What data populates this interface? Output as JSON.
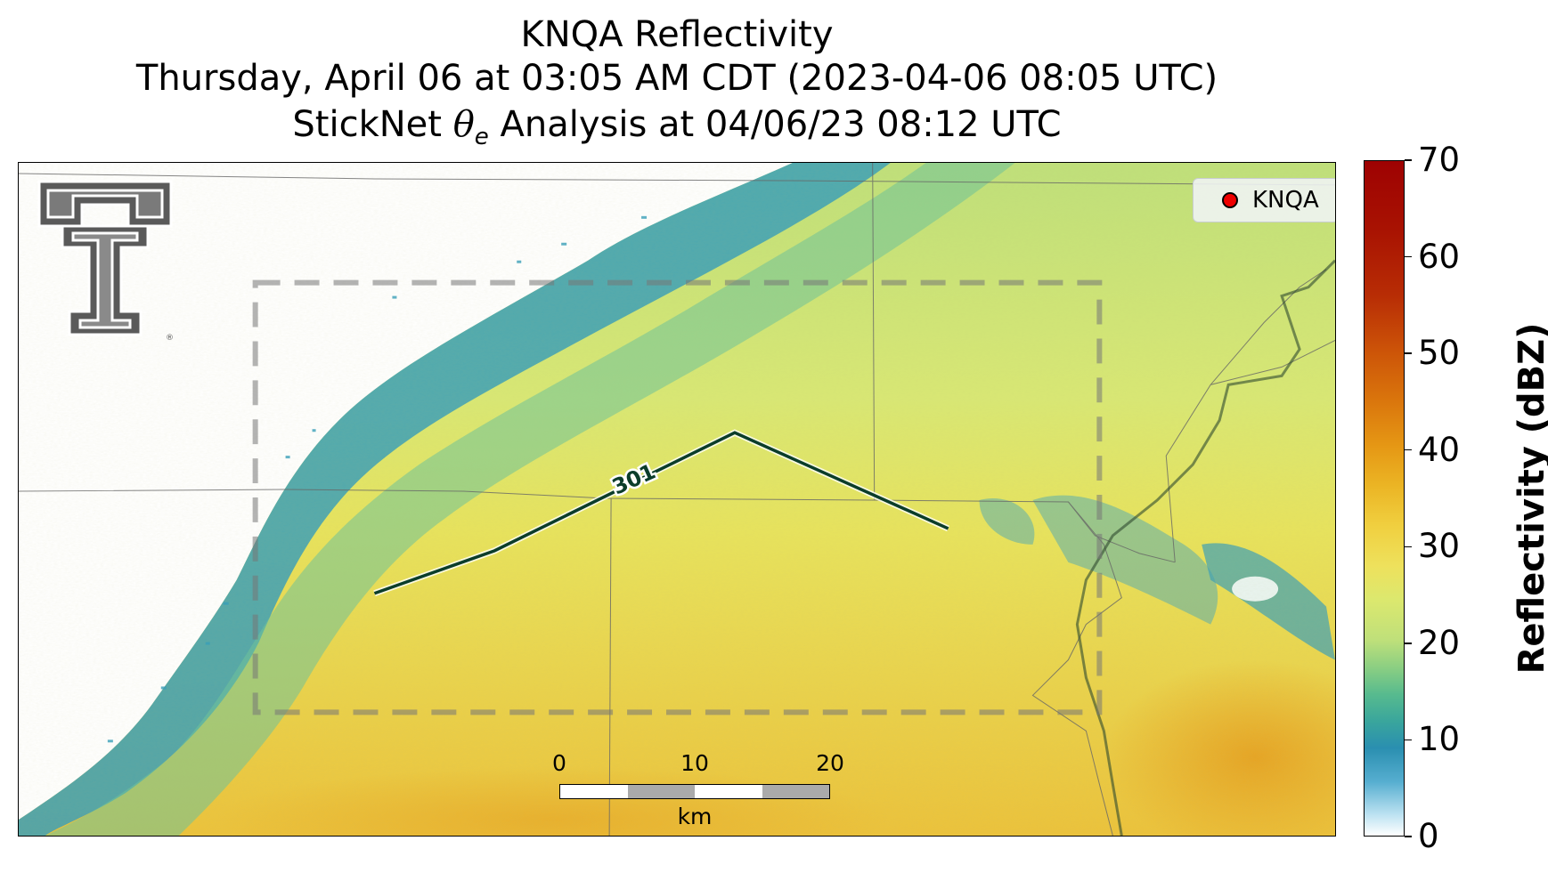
{
  "header": {
    "title_line1": "KNQA Reflectivity",
    "title_line2": "Thursday, April 06 at 03:05 AM CDT (2023-04-06 08:05 UTC)",
    "title_line3_prefix": "StickNet ",
    "title_line3_theta": "θ",
    "title_line3_sub": "e",
    "title_line3_suffix": " Analysis at 04/06/23 08:12 UTC"
  },
  "legend": {
    "station_label": "KNQA",
    "marker_color": "#ee0000"
  },
  "contour": {
    "label": "301",
    "color": "#0b3d2a"
  },
  "scalebar": {
    "ticks": [
      "0",
      "10",
      "20"
    ],
    "unit": "km"
  },
  "colorbar": {
    "label": "Reflectivity (dBZ)",
    "ticks": [
      "70",
      "60",
      "50",
      "40",
      "30",
      "20",
      "10",
      "0"
    ],
    "range": [
      0,
      70
    ]
  },
  "map": {
    "analysis_box_style": "dashed-gray",
    "background_color": "#ffffff",
    "logo_icon": "double-t-logo-icon"
  }
}
